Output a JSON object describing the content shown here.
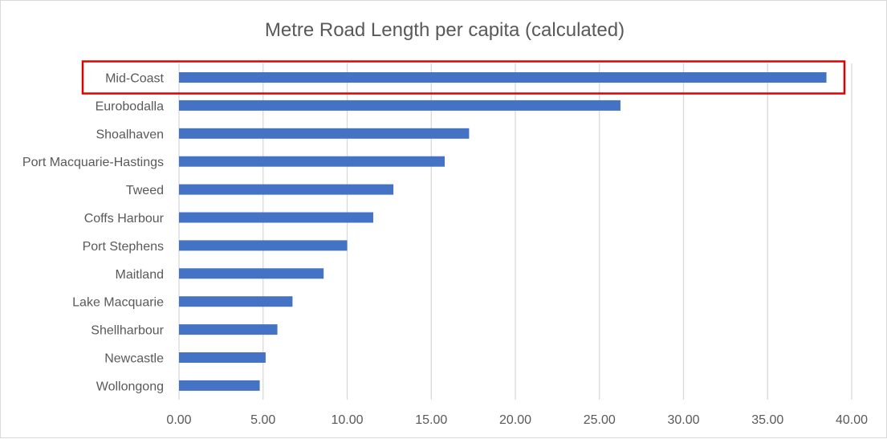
{
  "chart_data": {
    "type": "bar",
    "orientation": "horizontal",
    "title": "Metre Road Length per capita (calculated)",
    "xlabel": "",
    "ylabel": "",
    "categories": [
      "Mid-Coast",
      "Eurobodalla",
      "Shoalhaven",
      "Port Macquarie-Hastings",
      "Tweed",
      "Coffs Harbour",
      "Port Stephens",
      "Maitland",
      "Lake Macquarie",
      "Shellharbour",
      "Newcastle",
      "Wollongong"
    ],
    "values": [
      38.5,
      26.25,
      17.25,
      15.8,
      12.75,
      11.55,
      10.0,
      8.6,
      6.75,
      5.85,
      5.15,
      4.8
    ],
    "xlim": [
      0,
      40
    ],
    "ticks": [
      "0.00",
      "5.00",
      "10.00",
      "15.00",
      "20.00",
      "25.00",
      "30.00",
      "35.00",
      "40.00"
    ],
    "grid": "vertical",
    "legend": "none",
    "highlighted_category": "Mid-Coast",
    "bar_color": "#4472c4",
    "grid_color": "#d9d9d9",
    "highlight_color": "#e00000"
  }
}
